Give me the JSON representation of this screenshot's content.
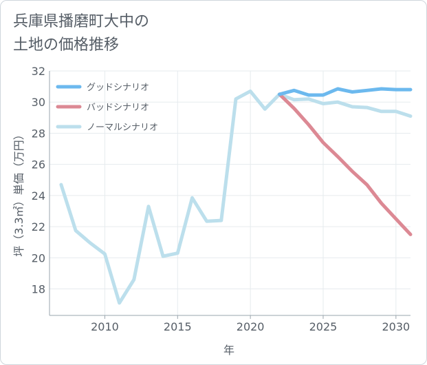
{
  "title": {
    "line1": "兵庫県播磨町大中の",
    "line2": "土地の価格推移"
  },
  "colors": {
    "good": "#6cb9ee",
    "bad": "#dc8994",
    "normal": "#bcdfec",
    "axis": "#9aa5ad",
    "text": "#555d66"
  },
  "chart_data": {
    "type": "line",
    "xlabel": "年",
    "ylabel": "坪（3.3㎡）単価（万円）",
    "xlim": [
      2006.2,
      2031
    ],
    "ylim": [
      16.3,
      32
    ],
    "xticks": [
      2010,
      2015,
      2020,
      2025,
      2030
    ],
    "yticks": [
      18,
      20,
      22,
      24,
      26,
      28,
      30,
      32
    ],
    "legend_position": "top-left",
    "series": [
      {
        "name": "グッドシナリオ",
        "key": "good",
        "x": [
          2022,
          2023,
          2024,
          2025,
          2026,
          2027,
          2028,
          2029,
          2030,
          2031
        ],
        "y": [
          30.5,
          30.75,
          30.45,
          30.45,
          30.85,
          30.65,
          30.75,
          30.85,
          30.8,
          30.8
        ]
      },
      {
        "name": "バッドシナリオ",
        "key": "bad",
        "x": [
          2022,
          2023,
          2024,
          2025,
          2026,
          2027,
          2028,
          2029,
          2030,
          2031
        ],
        "y": [
          30.5,
          29.6,
          28.55,
          27.4,
          26.5,
          25.55,
          24.7,
          23.5,
          22.5,
          21.5
        ]
      },
      {
        "name": "ノーマルシナリオ",
        "key": "normal",
        "x": [
          2007,
          2008,
          2009,
          2010,
          2011,
          2012,
          2013,
          2014,
          2015,
          2016,
          2017,
          2018,
          2019,
          2020,
          2021,
          2022,
          2023,
          2024,
          2025,
          2026,
          2027,
          2028,
          2029,
          2030,
          2031
        ],
        "y": [
          24.7,
          21.75,
          20.95,
          20.25,
          17.1,
          18.6,
          23.3,
          20.1,
          20.3,
          23.85,
          22.35,
          22.4,
          30.2,
          30.7,
          29.55,
          30.5,
          30.15,
          30.2,
          29.9,
          30.0,
          29.7,
          29.65,
          29.4,
          29.4,
          29.1
        ]
      }
    ]
  }
}
